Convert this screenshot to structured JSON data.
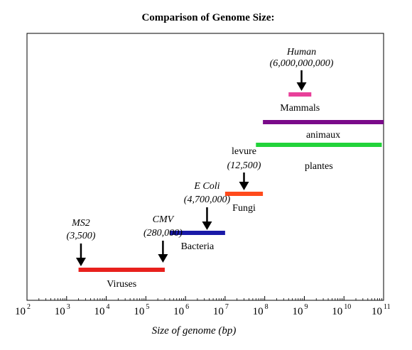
{
  "chart_data": {
    "type": "range-bar",
    "title": "Comparison of Genome Size:",
    "xlabel": "Size of genome (bp)",
    "x_scale": "log10",
    "xlim": [
      100,
      100000000000
    ],
    "x_ticks": [
      {
        "base": "10",
        "exp": "2"
      },
      {
        "base": "10",
        "exp": "3"
      },
      {
        "base": "10",
        "exp": "4"
      },
      {
        "base": "10",
        "exp": "5"
      },
      {
        "base": "10",
        "exp": "6"
      },
      {
        "base": "10",
        "exp": "7"
      },
      {
        "base": "10",
        "exp": "8"
      },
      {
        "base": "10",
        "exp": "9"
      },
      {
        "base": "10",
        "exp": "10"
      },
      {
        "base": "10",
        "exp": "11"
      }
    ],
    "grid": false,
    "legend": "none",
    "ranges": [
      {
        "label": "Viruses",
        "from": 2000,
        "to": 300000,
        "color": "#e8201c"
      },
      {
        "label": "Bacteria",
        "from": 400000,
        "to": 10000000,
        "color": "#1a1aa8"
      },
      {
        "label": "Fungi",
        "from": 10000000,
        "to": 90000000,
        "color": "#ff4a1c"
      },
      {
        "label": "plantes",
        "from": 60000000,
        "to": 90000000000,
        "color": "#22d33a"
      },
      {
        "label": "animaux",
        "from": 90000000,
        "to": 100000000000,
        "color": "#7a0a8a"
      },
      {
        "label": "Mammals",
        "from": 400000000,
        "to": 1500000000,
        "color": "#e8409a"
      }
    ],
    "annotations": [
      {
        "name": "MS2",
        "value": "(3,500)",
        "points_to": 2300
      },
      {
        "name": "CMV",
        "value": "(280,000)",
        "points_to": 270000
      },
      {
        "name": "E Coli",
        "value": "(4,700,000)",
        "points_to": 3500000
      },
      {
        "name": "levure",
        "value": "(12,500)",
        "points_to": 30000000
      },
      {
        "name": "Human",
        "value": "(6,000,000,000)",
        "points_to": 850000000
      }
    ]
  }
}
